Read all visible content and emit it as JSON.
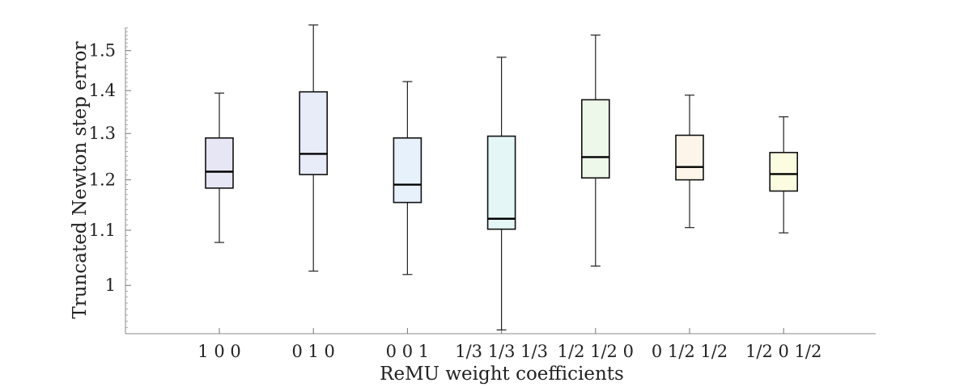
{
  "chart_data": {
    "type": "boxplot",
    "title": "",
    "xlabel": "ReMU weight coefficients",
    "ylabel": "Truncated Newton step error",
    "y_scale": "log",
    "ylim": [
      0.92,
      1.57
    ],
    "y_ticks": [
      1,
      1.1,
      1.2,
      1.3,
      1.4,
      1.5
    ],
    "y_tick_labels": [
      "1",
      "1.1",
      "1.2",
      "1.3",
      "1.4",
      "1.5"
    ],
    "grid": false,
    "categories": [
      "1 0 0",
      "0 1 0",
      "0 0 1",
      "1/3 1/3 1/3",
      "1/2 1/2 0",
      "0 1/2 1/2",
      "1/2 0 1/2"
    ],
    "boxes": [
      {
        "min": 1.077,
        "q1": 1.183,
        "median": 1.217,
        "q3": 1.29,
        "max": 1.394,
        "fill": "#e6e6f5"
      },
      {
        "min": 1.025,
        "q1": 1.211,
        "median": 1.255,
        "q3": 1.397,
        "max": 1.568,
        "fill": "#e8ebf8"
      },
      {
        "min": 1.019,
        "q1": 1.154,
        "median": 1.19,
        "q3": 1.29,
        "max": 1.422,
        "fill": "#e7f1fb"
      },
      {
        "min": 0.926,
        "q1": 1.102,
        "median": 1.122,
        "q3": 1.294,
        "max": 1.483,
        "fill": "#e5f6f6"
      },
      {
        "min": 1.034,
        "q1": 1.204,
        "median": 1.248,
        "q3": 1.378,
        "max": 1.541,
        "fill": "#edf8eb"
      },
      {
        "min": 1.105,
        "q1": 1.2,
        "median": 1.227,
        "q3": 1.296,
        "max": 1.389,
        "fill": "#fdf5e9"
      },
      {
        "min": 1.095,
        "q1": 1.177,
        "median": 1.212,
        "q3": 1.258,
        "max": 1.338,
        "fill": "#fcfce1"
      }
    ]
  }
}
